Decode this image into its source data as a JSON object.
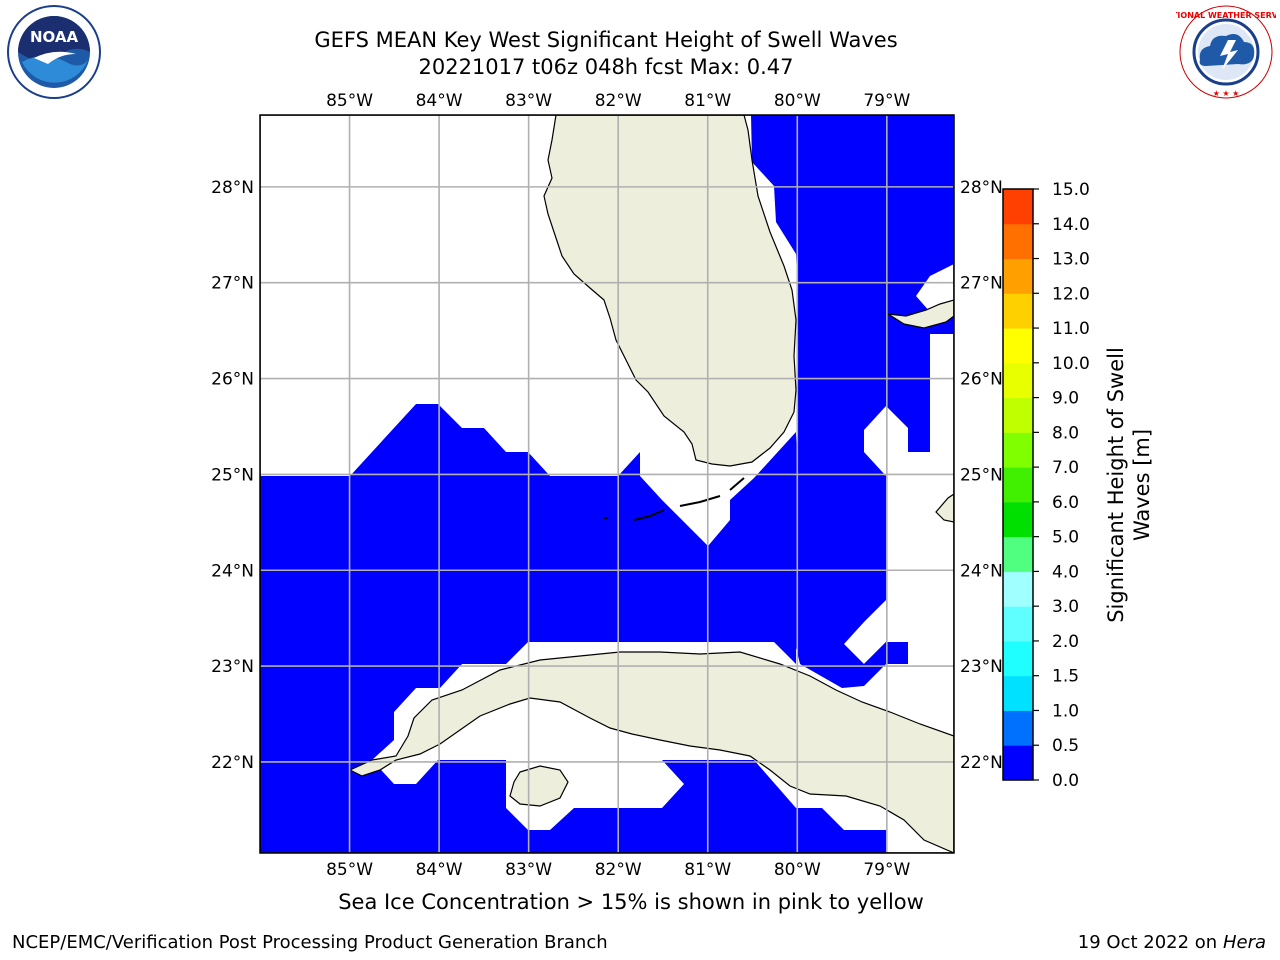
{
  "title": {
    "line1": "GEFS MEAN Key West Significant Height of Swell Waves",
    "line2": "20221017 t06z 048h fcst   Max: 0.47"
  },
  "logos": {
    "left": {
      "icon": "noaa-logo",
      "text": "NOAA",
      "ring_text": "NATIONAL OCEANIC AND ATMOSPHERIC ADMINISTRATION · U.S. DEPARTMENT OF COMMERCE"
    },
    "right": {
      "icon": "nws-logo",
      "ring_text": "NATIONAL WEATHER SERVICE"
    }
  },
  "map": {
    "lon_range": [
      -86.0,
      -78.25
    ],
    "lat_range": [
      21.05,
      28.75
    ],
    "lon_ticks": [
      "85°W",
      "84°W",
      "83°W",
      "82°W",
      "81°W",
      "80°W",
      "79°W"
    ],
    "lon_values": [
      -85,
      -84,
      -83,
      -82,
      -81,
      -80,
      -79
    ],
    "lat_ticks": [
      "22°N",
      "23°N",
      "24°N",
      "25°N",
      "26°N",
      "27°N",
      "28°N"
    ],
    "lat_values": [
      22,
      23,
      24,
      25,
      26,
      27,
      28
    ],
    "ocean_swell_color": "#0000ff",
    "land_color": "#eeeedd",
    "gridline_color": "#b0b0b0",
    "gridlines": true
  },
  "colorbar": {
    "label_line1": "Significant Height of Swell",
    "label_line2": "Waves [m]",
    "ticks": [
      "0.0",
      "0.5",
      "1.0",
      "1.5",
      "2.0",
      "3.0",
      "4.0",
      "5.0",
      "6.0",
      "7.0",
      "8.0",
      "9.0",
      "10.0",
      "11.0",
      "12.0",
      "13.0",
      "14.0",
      "15.0"
    ],
    "colors": [
      "#0000ff",
      "#0070ff",
      "#00e0ff",
      "#20ffff",
      "#60ffff",
      "#a0ffff",
      "#50ff80",
      "#00e000",
      "#40f000",
      "#80ff00",
      "#c0ff00",
      "#e8ff00",
      "#ffff00",
      "#ffd000",
      "#ffa000",
      "#ff7000",
      "#ff4000",
      "#ff0000"
    ]
  },
  "footnote": "Sea Ice Concentration > 15% is shown in pink to yellow",
  "credits": {
    "left": "NCEP/EMC/Verification Post Processing Product Generation Branch",
    "right_prefix": "19 Oct 2022 on ",
    "right_host": "Hera"
  }
}
